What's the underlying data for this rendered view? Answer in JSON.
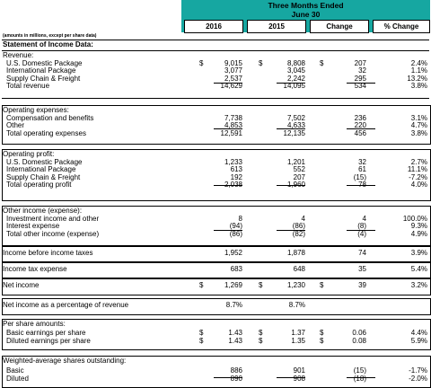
{
  "header": {
    "line1": "Three Months Ended",
    "line2": "June 30",
    "col_2016": "2016",
    "col_2015": "2015",
    "col_change": "Change",
    "col_pct": "% Change",
    "amounts_note": "(amounts in millions, except per share data)",
    "statement_title": "Statement of Income Data:"
  },
  "currency_symbol": "$",
  "sections": {
    "revenue": {
      "label": "Revenue:",
      "rows": [
        {
          "label": "U.S. Domestic Package",
          "v2016": "9,015",
          "v2015": "8,808",
          "change": "207",
          "pct": "2.4%"
        },
        {
          "label": "International Package",
          "v2016": "3,077",
          "v2015": "3,045",
          "change": "32",
          "pct": "1.1%"
        },
        {
          "label": "Supply Chain & Freight",
          "v2016": "2,537",
          "v2015": "2,242",
          "change": "295",
          "pct": "13.2%"
        },
        {
          "label": "Total revenue",
          "v2016": "14,629",
          "v2015": "14,095",
          "change": "534",
          "pct": "3.8%"
        }
      ]
    },
    "opex": {
      "label": "Operating expenses:",
      "rows": [
        {
          "label": "Compensation and benefits",
          "v2016": "7,738",
          "v2015": "7,502",
          "change": "236",
          "pct": "3.1%"
        },
        {
          "label": "Other",
          "v2016": "4,853",
          "v2015": "4,633",
          "change": "220",
          "pct": "4.7%"
        },
        {
          "label": "Total operating expenses",
          "v2016": "12,591",
          "v2015": "12,135",
          "change": "456",
          "pct": "3.8%"
        }
      ]
    },
    "opprofit": {
      "label": "Operating profit:",
      "rows": [
        {
          "label": "U.S. Domestic Package",
          "v2016": "1,233",
          "v2015": "1,201",
          "change": "32",
          "pct": "2.7%"
        },
        {
          "label": "International Package",
          "v2016": "613",
          "v2015": "552",
          "change": "61",
          "pct": "11.1%"
        },
        {
          "label": "Supply Chain & Freight",
          "v2016": "192",
          "v2015": "207",
          "change": "(15)",
          "pct": "-7.2%"
        },
        {
          "label": "Total operating profit",
          "v2016": "2,038",
          "v2015": "1,960",
          "change": "78",
          "pct": "4.0%"
        }
      ]
    },
    "otherincome": {
      "label": "Other income (expense):",
      "rows": [
        {
          "label": "Investment income and other",
          "v2016": "8",
          "v2015": "4",
          "change": "4",
          "pct": "100.0%"
        },
        {
          "label": "Interest expense",
          "v2016": "(94)",
          "v2015": "(86)",
          "change": "(8)",
          "pct": "9.3%"
        },
        {
          "label": "Total other income (expense)",
          "v2016": "(86)",
          "v2015": "(82)",
          "change": "(4)",
          "pct": "4.9%"
        }
      ]
    },
    "pretax": {
      "label": "Income before income taxes",
      "v2016": "1,952",
      "v2015": "1,878",
      "change": "74",
      "pct": "3.9%"
    },
    "tax": {
      "label": "Income tax expense",
      "v2016": "683",
      "v2015": "648",
      "change": "35",
      "pct": "5.4%"
    },
    "netincome": {
      "label": "Net income",
      "v2016": "1,269",
      "v2015": "1,230",
      "change": "39",
      "pct": "3.2%"
    },
    "netpct": {
      "label": "Net income as a percentage of revenue",
      "v2016": "8.7%",
      "v2015": "8.7%"
    },
    "pershare": {
      "label": "Per share amounts:",
      "rows": [
        {
          "label": "Basic earnings per share",
          "v2016": "1.43",
          "v2015": "1.37",
          "change": "0.06",
          "pct": "4.4%"
        },
        {
          "label": "Diluted earnings per share",
          "v2016": "1.43",
          "v2015": "1.35",
          "change": "0.08",
          "pct": "5.9%"
        }
      ]
    },
    "shares": {
      "label": "Weighted-average shares outstanding:",
      "rows": [
        {
          "label": "Basic",
          "v2016": "886",
          "v2015": "901",
          "change": "(15)",
          "pct": "-1.7%"
        },
        {
          "label": "Diluted",
          "v2016": "890",
          "v2015": "908",
          "change": "(18)",
          "pct": "-2.0%"
        }
      ]
    }
  },
  "colors": {
    "header_band": "#16a7a1",
    "border": "#000000"
  }
}
